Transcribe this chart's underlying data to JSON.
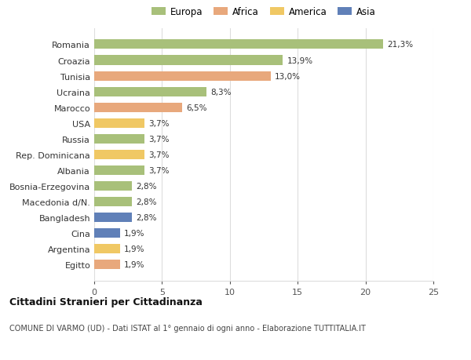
{
  "countries": [
    "Romania",
    "Croazia",
    "Tunisia",
    "Ucraina",
    "Marocco",
    "USA",
    "Russia",
    "Rep. Dominicana",
    "Albania",
    "Bosnia-Erzegovina",
    "Macedonia d/N.",
    "Bangladesh",
    "Cina",
    "Argentina",
    "Egitto"
  ],
  "values": [
    21.3,
    13.9,
    13.0,
    8.3,
    6.5,
    3.7,
    3.7,
    3.7,
    3.7,
    2.8,
    2.8,
    2.8,
    1.9,
    1.9,
    1.9
  ],
  "labels": [
    "21,3%",
    "13,9%",
    "13,0%",
    "8,3%",
    "6,5%",
    "3,7%",
    "3,7%",
    "3,7%",
    "3,7%",
    "2,8%",
    "2,8%",
    "2,8%",
    "1,9%",
    "1,9%",
    "1,9%"
  ],
  "continents": [
    "Europa",
    "Europa",
    "Africa",
    "Europa",
    "Africa",
    "America",
    "Europa",
    "America",
    "Europa",
    "Europa",
    "Europa",
    "Asia",
    "Asia",
    "America",
    "Africa"
  ],
  "colors": {
    "Europa": "#a8c07a",
    "Africa": "#e8a87c",
    "America": "#f0c864",
    "Asia": "#6080b8"
  },
  "legend_order": [
    "Europa",
    "Africa",
    "America",
    "Asia"
  ],
  "legend_colors": [
    "#a8c07a",
    "#e8a87c",
    "#f0c864",
    "#6080b8"
  ],
  "xlim": [
    0,
    25
  ],
  "xticks": [
    0,
    5,
    10,
    15,
    20,
    25
  ],
  "title": "Cittadini Stranieri per Cittadinanza",
  "subtitle": "COMUNE DI VARMO (UD) - Dati ISTAT al 1° gennaio di ogni anno - Elaborazione TUTTITALIA.IT",
  "background_color": "#ffffff",
  "grid_color": "#dddddd",
  "bar_height": 0.6
}
